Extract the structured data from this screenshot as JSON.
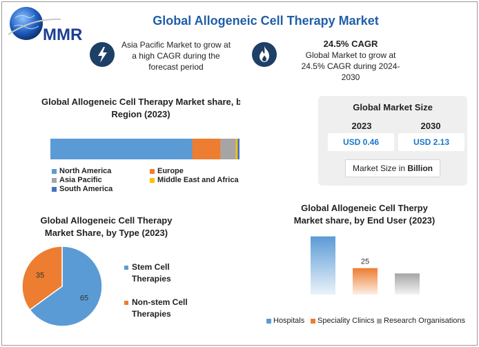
{
  "header": {
    "title": "Global Allogeneic Cell Therapy Market",
    "logo_text": "MMR"
  },
  "highlights": [
    {
      "icon": "lightning-icon",
      "lines": [
        "Asia Pacific Market to grow at",
        "a high CAGR during the",
        "forecast period"
      ]
    },
    {
      "icon": "flame-icon",
      "headline": "24.5% CAGR",
      "lines": [
        "Global Market to grow at",
        "24.5% CAGR during 2024-",
        "2030"
      ]
    }
  ],
  "region_chart": {
    "title_lines": [
      "Global Allogeneic Cell Therapy Market share, b",
      "Region (2023)"
    ]
  },
  "market_size": {
    "title": "Global Market Size",
    "year_a": "2023",
    "year_b": "2030",
    "value_a": "USD 0.46",
    "value_b": "USD 2.13",
    "unit_prefix": "Market Size in ",
    "unit_strong": "Billion"
  },
  "type_chart": {
    "title_lines": [
      "Global Allogeneic Cell Therapy",
      "Market Share, by Type (2023)"
    ],
    "legend": [
      {
        "lines": [
          "Stem Cell",
          "Therapies"
        ]
      },
      {
        "lines": [
          "Non-stem Cell",
          "Therapies"
        ]
      }
    ]
  },
  "enduser_chart": {
    "title_lines": [
      "Global Allogeneic Cell Therpy",
      "Market share, by End User (2023)"
    ]
  },
  "chart_data": [
    {
      "type": "bar",
      "orientation": "horizontal-stacked",
      "title": "Global Allogeneic Cell Therapy Market share, b Region (2023)",
      "series": [
        {
          "name": "North America",
          "value": 75,
          "color": "#5b9bd5"
        },
        {
          "name": "Europe",
          "value": 15,
          "color": "#ed7d31"
        },
        {
          "name": "Asia Pacific",
          "value": 8,
          "color": "#a5a5a5"
        },
        {
          "name": "Middle East and Africa",
          "value": 1,
          "color": "#ffc000"
        },
        {
          "name": "South America",
          "value": 1,
          "color": "#4472c4"
        }
      ],
      "legend_placement": "bottom"
    },
    {
      "type": "pie",
      "title": "Global Allogeneic Cell Therapy Market Share, by Type (2023)",
      "slices": [
        {
          "name": "Stem Cell Therapies",
          "value": 65,
          "color": "#5b9bd5"
        },
        {
          "name": "Non-stem Cell Therapies",
          "value": 35,
          "color": "#ed7d31"
        }
      ],
      "legend_placement": "right"
    },
    {
      "type": "bar",
      "title": "Global Allogeneic Cell Therpy Market share, by End User (2023)",
      "categories": [
        "Hospitals",
        "Speciality Clinics",
        "Research Organisations"
      ],
      "values": [
        55,
        25,
        20
      ],
      "data_labels": [
        "",
        "25",
        ""
      ],
      "colors": [
        "#5b9bd5",
        "#ed7d31",
        "#a5a5a5"
      ],
      "ylim": [
        0,
        60
      ],
      "legend_placement": "bottom"
    }
  ]
}
